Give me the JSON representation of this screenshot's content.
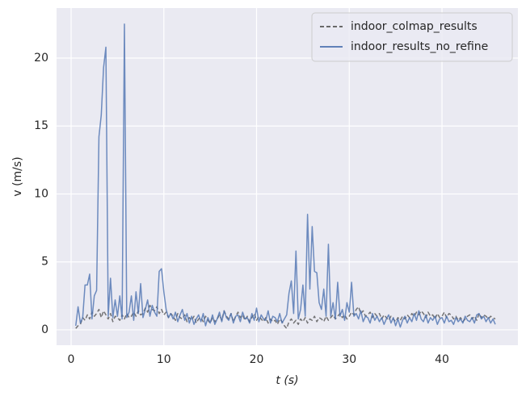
{
  "chart_data": {
    "type": "line",
    "xlabel": "t (s)",
    "ylabel": "v (m/s)",
    "x": [
      0.5,
      0.75,
      1,
      1.25,
      1.5,
      1.75,
      2,
      2.25,
      2.5,
      2.75,
      3,
      3.25,
      3.5,
      3.75,
      4,
      4.25,
      4.5,
      4.75,
      5,
      5.25,
      5.5,
      5.75,
      6,
      6.25,
      6.5,
      6.75,
      7,
      7.25,
      7.5,
      7.75,
      8,
      8.25,
      8.5,
      8.75,
      9,
      9.25,
      9.5,
      9.75,
      10,
      10.25,
      10.5,
      10.75,
      11,
      11.25,
      11.5,
      11.75,
      12,
      12.25,
      12.5,
      12.75,
      13,
      13.25,
      13.5,
      13.75,
      14,
      14.25,
      14.5,
      14.75,
      15,
      15.25,
      15.5,
      15.75,
      16,
      16.25,
      16.5,
      16.75,
      17,
      17.25,
      17.5,
      17.75,
      18,
      18.25,
      18.5,
      18.75,
      19,
      19.25,
      19.5,
      19.75,
      20,
      20.25,
      20.5,
      20.75,
      21,
      21.25,
      21.5,
      21.75,
      22,
      22.25,
      22.5,
      22.75,
      23,
      23.25,
      23.5,
      23.75,
      24,
      24.25,
      24.5,
      24.75,
      25,
      25.25,
      25.5,
      25.75,
      26,
      26.25,
      26.5,
      26.75,
      27,
      27.25,
      27.5,
      27.75,
      28,
      28.25,
      28.5,
      28.75,
      29,
      29.25,
      29.5,
      29.75,
      30,
      30.25,
      30.5,
      30.75,
      31,
      31.25,
      31.5,
      31.75,
      32,
      32.25,
      32.5,
      32.75,
      33,
      33.25,
      33.5,
      33.75,
      34,
      34.25,
      34.5,
      34.75,
      35,
      35.25,
      35.5,
      35.75,
      36,
      36.25,
      36.5,
      36.75,
      37,
      37.25,
      37.5,
      37.75,
      38,
      38.25,
      38.5,
      38.75,
      39,
      39.25,
      39.5,
      39.75,
      40,
      40.25,
      40.5,
      40.75,
      41,
      41.25,
      41.5,
      41.75,
      42,
      42.25,
      42.5,
      42.75,
      43,
      43.25,
      43.5,
      43.75,
      44,
      44.25,
      44.5,
      44.75,
      45,
      45.25,
      45.5,
      45.75
    ],
    "series": [
      {
        "name": "indoor_colmap_results",
        "color": "#555555",
        "dashed": true,
        "values": [
          0.1,
          0.3,
          0.4,
          0.9,
          0.7,
          1.1,
          0.8,
          1.3,
          1.0,
          1.2,
          1.5,
          0.9,
          1.4,
          1.1,
          0.8,
          1.2,
          0.6,
          1.0,
          0.9,
          0.7,
          1.1,
          0.8,
          1.2,
          0.9,
          1.0,
          1.3,
          1.0,
          1.4,
          1.1,
          1.2,
          1.6,
          1.3,
          1.8,
          1.5,
          1.4,
          1.7,
          1.2,
          1.5,
          1.1,
          1.3,
          0.9,
          1.2,
          1.0,
          0.7,
          1.2,
          0.9,
          0.8,
          1.1,
          0.6,
          0.9,
          0.7,
          1.0,
          0.5,
          0.8,
          0.9,
          0.6,
          1.0,
          0.7,
          0.5,
          0.9,
          0.6,
          0.8,
          1.1,
          0.7,
          1.4,
          1.0,
          0.8,
          1.2,
          0.6,
          1.0,
          1.3,
          0.9,
          1.1,
          0.7,
          1.0,
          0.6,
          0.9,
          1.2,
          0.7,
          1.0,
          0.8,
          0.6,
          0.9,
          0.5,
          0.8,
          0.6,
          0.7,
          0.4,
          0.8,
          0.6,
          0.3,
          0.1,
          0.6,
          0.8,
          0.5,
          0.7,
          0.4,
          0.8,
          0.6,
          0.9,
          0.5,
          0.8,
          0.7,
          1.0,
          0.6,
          0.9,
          0.8,
          0.6,
          1.0,
          0.7,
          0.9,
          1.1,
          0.8,
          1.0,
          1.2,
          0.9,
          1.1,
          0.8,
          1.0,
          1.3,
          1.1,
          1.5,
          1.7,
          1.2,
          1.4,
          1.0,
          1.1,
          1.3,
          0.9,
          1.2,
          1.0,
          1.2,
          0.8,
          1.1,
          0.9,
          0.7,
          1.0,
          0.8,
          0.6,
          0.9,
          0.7,
          1.0,
          0.8,
          1.1,
          0.9,
          1.2,
          1.0,
          1.3,
          1.1,
          1.4,
          1.2,
          0.9,
          1.3,
          1.0,
          1.1,
          0.8,
          1.2,
          0.9,
          1.0,
          1.3,
          0.9,
          1.2,
          1.1,
          0.8,
          1.0,
          0.7,
          0.9,
          0.6,
          0.8,
          1.0,
          1.1,
          0.8,
          1.0,
          0.7,
          1.2,
          0.9,
          1.1,
          1.0,
          0.8,
          1.0,
          0.9,
          0.8
        ]
      },
      {
        "name": "indoor_results_no_refine",
        "color": "#4c72b0",
        "dashed": false,
        "values": [
          0.3,
          1.7,
          0.5,
          0.9,
          3.3,
          3.3,
          4.1,
          0.8,
          2.5,
          2.9,
          14.2,
          15.8,
          19.3,
          20.8,
          1.0,
          3.8,
          0.9,
          2.2,
          1.0,
          2.5,
          0.8,
          22.5,
          0.9,
          1.3,
          2.5,
          0.7,
          2.8,
          1.2,
          3.4,
          0.9,
          1.5,
          2.2,
          1.0,
          1.8,
          1.3,
          1.0,
          4.3,
          4.5,
          2.8,
          1.5,
          0.9,
          1.2,
          0.8,
          1.3,
          0.6,
          1.1,
          1.5,
          0.7,
          1.2,
          0.5,
          1.0,
          0.4,
          0.8,
          1.1,
          0.6,
          1.2,
          0.3,
          0.9,
          0.5,
          1.1,
          0.4,
          0.8,
          1.3,
          0.6,
          1.4,
          0.9,
          0.7,
          1.2,
          0.5,
          1.0,
          1.1,
          0.6,
          1.3,
          0.8,
          0.9,
          0.5,
          1.2,
          0.7,
          1.6,
          0.6,
          1.1,
          0.8,
          0.7,
          1.4,
          0.5,
          1.0,
          0.9,
          0.6,
          1.2,
          0.5,
          0.8,
          1.1,
          2.7,
          3.6,
          1.2,
          5.8,
          0.8,
          1.5,
          3.3,
          1.0,
          8.5,
          3.0,
          7.6,
          4.3,
          4.2,
          2.0,
          1.5,
          3.0,
          1.0,
          6.3,
          1.0,
          2.0,
          0.8,
          3.5,
          1.0,
          1.5,
          0.7,
          2.0,
          1.3,
          3.5,
          1.0,
          1.2,
          0.8,
          1.4,
          0.6,
          1.0,
          0.9,
          0.5,
          1.2,
          0.7,
          1.0,
          0.6,
          0.9,
          0.4,
          0.8,
          1.1,
          0.5,
          0.9,
          0.3,
          0.8,
          0.2,
          0.7,
          1.0,
          0.5,
          0.9,
          0.6,
          1.2,
          0.7,
          1.4,
          0.8,
          0.6,
          1.1,
          0.5,
          0.9,
          0.7,
          1.0,
          0.4,
          0.8,
          0.9,
          0.5,
          1.0,
          0.6,
          0.7,
          0.4,
          0.9,
          0.6,
          0.8,
          0.5,
          1.0,
          0.7,
          0.6,
          0.9,
          0.5,
          1.1,
          1.2,
          0.8,
          1.0,
          0.6,
          0.9,
          0.5,
          0.8,
          0.4
        ]
      }
    ],
    "xlim": [
      -1.57,
      48.19
    ],
    "ylim": [
      -1.13,
      23.68
    ],
    "xticks": [
      0,
      10,
      20,
      30,
      40
    ],
    "yticks": [
      0,
      5,
      10,
      15,
      20
    ],
    "grid": true,
    "legend": "upper right"
  }
}
